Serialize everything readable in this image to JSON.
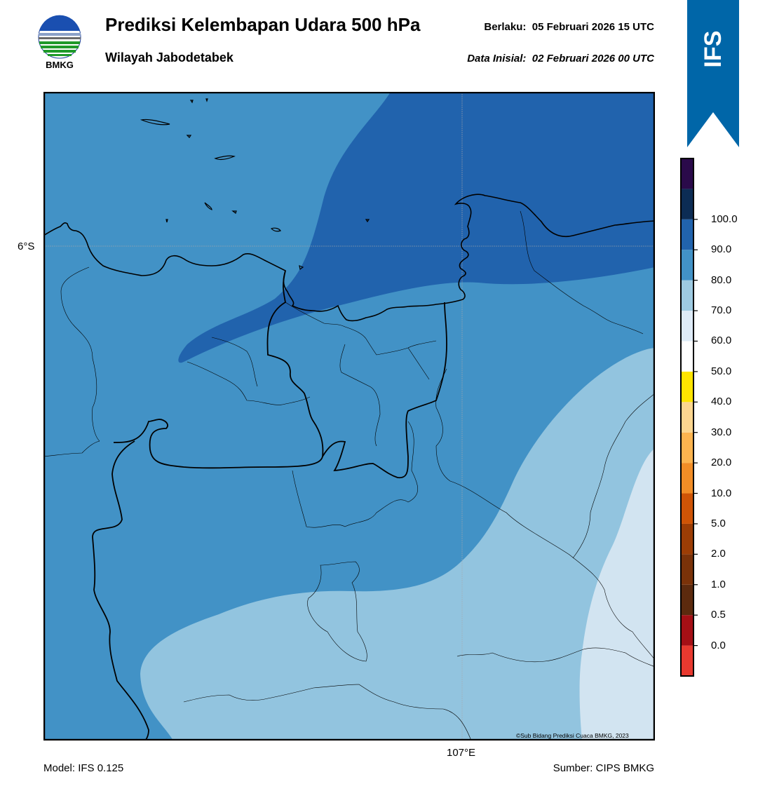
{
  "header": {
    "title": "Prediksi Kelembapan Udara 500 hPa",
    "subtitle": "Wilayah Jabodetabek",
    "valid_label": "Berlaku:",
    "valid_value": "05 Februari 2026 15 UTC",
    "init_label": "Data Inisial:",
    "init_value": "02 Februari 2026 00 UTC"
  },
  "logo": {
    "icon": "bmkg-logo-icon",
    "text": "BMKG"
  },
  "ribbon": {
    "text": "IFS",
    "color": "#0066a8"
  },
  "map": {
    "lat_label": "6°S",
    "lon_label": "107°E",
    "copyright": "©Sub Bidang Prediksi Cuaca BMKG, 2023",
    "colors": {
      "band_50_60": "#d2e4f1",
      "band_60_70": "#92c4df",
      "band_70_80": "#4292c6",
      "band_80_90": "#2163ad"
    }
  },
  "legend": {
    "ticks": [
      "0.0",
      "0.5",
      "1.0",
      "2.0",
      "5.0",
      "10.0",
      "20.0",
      "30.0",
      "40.0",
      "50.0",
      "60.0",
      "70.0",
      "80.0",
      "90.0",
      "100.0"
    ],
    "colors": [
      "#e8392f",
      "#a50f15",
      "#5c2a0e",
      "#7a3209",
      "#9c3d05",
      "#cf5406",
      "#f28d26",
      "#fdb44f",
      "#fdd68f",
      "#ffe400",
      "#ffffff",
      "#deebf7",
      "#9ecae1",
      "#4292c6",
      "#2163ad",
      "#0c2c54",
      "#2a0a4a"
    ]
  },
  "footer": {
    "model": "Model: IFS 0.125",
    "source": "Sumber: CIPS BMKG"
  }
}
